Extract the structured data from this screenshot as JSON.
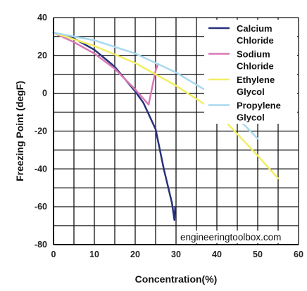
{
  "chart_data": {
    "type": "line",
    "title": "",
    "xlabel": "Concentration(%)",
    "ylabel": "Freezing Point (degF)",
    "xlim": [
      0,
      60
    ],
    "ylim": [
      -80,
      40
    ],
    "x_ticks": [
      0,
      10,
      20,
      30,
      40,
      50,
      60
    ],
    "y_ticks": [
      40,
      20,
      0,
      -20,
      -40,
      -60,
      -80
    ],
    "grid": true,
    "legend_position": "top-right",
    "watermark": "engineeringtoolbox.com",
    "series": [
      {
        "name_lines": [
          "Calcium",
          "Chloride"
        ],
        "color": "#28307a",
        "points": [
          [
            0,
            32
          ],
          [
            5,
            29
          ],
          [
            10,
            23
          ],
          [
            15,
            14
          ],
          [
            20,
            1
          ],
          [
            22,
            -5
          ],
          [
            25,
            -19
          ],
          [
            27,
            -40
          ],
          [
            29,
            -58
          ],
          [
            29.6,
            -67
          ],
          [
            29.8,
            -60
          ]
        ]
      },
      {
        "name_lines": [
          "Sodium",
          "Chloride"
        ],
        "color": "#d977b5",
        "points": [
          [
            0,
            32
          ],
          [
            5,
            27
          ],
          [
            10,
            21
          ],
          [
            15,
            13
          ],
          [
            20,
            2
          ],
          [
            23.3,
            -6
          ],
          [
            25,
            12
          ],
          [
            25.5,
            15
          ]
        ]
      },
      {
        "name_lines": [
          "Ethylene",
          "Glycol"
        ],
        "color": "#f2ee62",
        "points": [
          [
            0,
            32
          ],
          [
            10,
            25
          ],
          [
            20,
            16
          ],
          [
            30,
            4
          ],
          [
            40,
            -10
          ],
          [
            50,
            -33
          ],
          [
            55,
            -45
          ]
        ]
      },
      {
        "name_lines": [
          "Propylene",
          "Glycol"
        ],
        "color": "#a9d9ef",
        "points": [
          [
            0,
            32
          ],
          [
            10,
            28
          ],
          [
            20,
            21
          ],
          [
            30,
            11
          ],
          [
            40,
            -2
          ],
          [
            50,
            -24
          ]
        ]
      }
    ]
  }
}
